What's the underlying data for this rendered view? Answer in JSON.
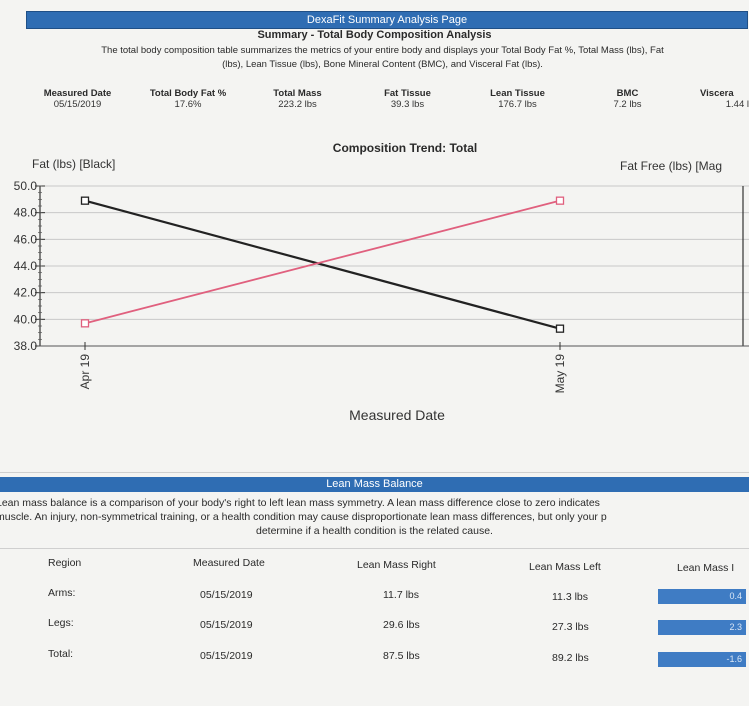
{
  "header": {
    "title": "DexaFit Summary Analysis Page",
    "subtitle": "Summary - Total Body Composition Analysis",
    "description_line1": "The total body composition table summarizes the metrics of your entire body and displays your Total Body Fat %, Total Mass (lbs), Fat",
    "description_line2": "(lbs), Lean Tissue (lbs), Bone Mineral Content (BMC), and Visceral Fat (lbs)."
  },
  "metrics": [
    {
      "label": "Measured Date",
      "value": "05/15/2019"
    },
    {
      "label": "Total Body Fat %",
      "value": "17.6%"
    },
    {
      "label": "Total Mass",
      "value": "223.2 lbs"
    },
    {
      "label": "Fat Tissue",
      "value": "39.3 lbs"
    },
    {
      "label": "Lean Tissue",
      "value": "176.7 lbs"
    },
    {
      "label": "BMC",
      "value": "7.2 lbs"
    },
    {
      "label": "Viscera",
      "value": "1.44 l"
    }
  ],
  "chart_data": {
    "type": "line",
    "title": "Composition Trend: Total",
    "left_axis_label": "Fat (lbs) [Black]",
    "right_axis_label": "Fat Free (lbs) [Mag",
    "xlabel": "Measured Date",
    "x_ticks": [
      "Apr 19",
      "May 19"
    ],
    "y_ticks": [
      "50.0",
      "48.0",
      "46.0",
      "44.0",
      "42.0",
      "40.0",
      "38.0"
    ],
    "ylim": [
      38,
      50
    ],
    "grid": true,
    "series": [
      {
        "name": "Fat (lbs)",
        "color": "#222222",
        "values": [
          48.9,
          39.3
        ]
      },
      {
        "name": "Fat Free (lbs)",
        "color": "#e0607e",
        "values": [
          39.7,
          48.9
        ]
      }
    ]
  },
  "lean_mass": {
    "title": "Lean Mass Balance",
    "desc1": "Lean mass balance is a comparison of your body's right to left lean mass symmetry. A lean mass difference close to zero indicates",
    "desc2": "muscle. An injury, non-symmetrical training, or a health condition may cause disproportionate lean mass differences, but only your p",
    "desc3": "determine if a health condition is the related cause.",
    "headers": [
      "Region",
      "Measured Date",
      "Lean Mass Right",
      "Lean Mass Left",
      "Lean Mass I"
    ],
    "rows": [
      {
        "region": "Arms:",
        "date": "05/15/2019",
        "right": "11.7 lbs",
        "left": "11.3 lbs",
        "diff": "0.4"
      },
      {
        "region": "Legs:",
        "date": "05/15/2019",
        "right": "29.6 lbs",
        "left": "27.3 lbs",
        "diff": "2.3"
      },
      {
        "region": "Total:",
        "date": "05/15/2019",
        "right": "87.5 lbs",
        "left": "89.2 lbs",
        "diff": "-1.6"
      }
    ]
  }
}
